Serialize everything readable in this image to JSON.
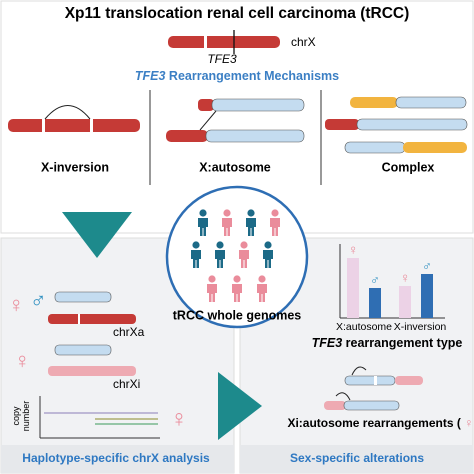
{
  "header": {
    "title": "Xp11 translocation renal cell carcinoma (tRCC)",
    "chromosome": "chrX",
    "gene": "TFE3"
  },
  "mechanisms": {
    "title_gene": "TFE3",
    "title_rest": "Rearrangement Mechanisms",
    "labels": [
      "X-inversion",
      "X:autosome",
      "Complex"
    ]
  },
  "center": {
    "label": "tRCC whole genomes"
  },
  "symbols": {
    "female": "♀",
    "male": "♂"
  },
  "left_panel": {
    "chrXa": "chrXa",
    "chrXi": "chrXi",
    "axis_label": [
      "copy",
      "number"
    ],
    "footer": "Haplotype-specific chrX analysis"
  },
  "right_panel": {
    "categories": [
      "X:autosome",
      "X-inversion"
    ],
    "axis_gene": "TFE3",
    "axis_rest": "rearrangement type",
    "rearr_label": "Xi:autosome rearrangements (",
    "rearr_close": ")",
    "footer": "Sex-specific alterations"
  }
}
